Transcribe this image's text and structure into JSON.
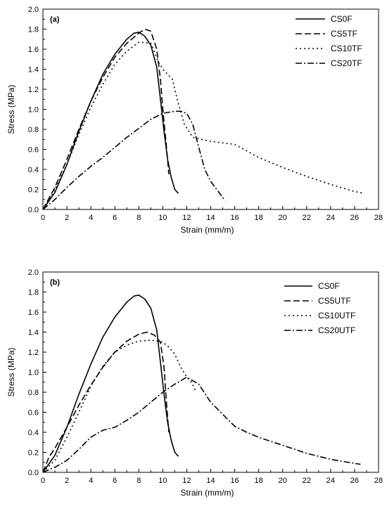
{
  "chart_data": [
    {
      "type": "line",
      "panel_label": "(a)",
      "xlabel": "Strain (mm/m)",
      "ylabel": "Stress (MPa)",
      "xlim": [
        0,
        28
      ],
      "ylim": [
        0,
        2.0
      ],
      "x_ticks": [
        "0",
        "2",
        "4",
        "6",
        "8",
        "10",
        "12",
        "14",
        "16",
        "18",
        "20",
        "22",
        "24",
        "26",
        "28"
      ],
      "y_ticks": [
        "0.0",
        "0.2",
        "0.4",
        "0.6",
        "0.8",
        "1.0",
        "1.2",
        "1.4",
        "1.6",
        "1.8",
        "2.0"
      ],
      "legend_position": "top-right",
      "grid": false,
      "series": [
        {
          "name": "CS0F",
          "dash": "solid",
          "points": [
            [
              0,
              0
            ],
            [
              1,
              0.17
            ],
            [
              2,
              0.45
            ],
            [
              3,
              0.78
            ],
            [
              4,
              1.08
            ],
            [
              5,
              1.35
            ],
            [
              6,
              1.55
            ],
            [
              7,
              1.7
            ],
            [
              7.6,
              1.76
            ],
            [
              8,
              1.77
            ],
            [
              8.5,
              1.73
            ],
            [
              9,
              1.64
            ],
            [
              9.5,
              1.42
            ],
            [
              9.8,
              1.1
            ],
            [
              10.1,
              0.78
            ],
            [
              10.4,
              0.5
            ],
            [
              10.7,
              0.32
            ],
            [
              11,
              0.2
            ],
            [
              11.3,
              0.16
            ]
          ]
        },
        {
          "name": "CS5TF",
          "dash": "dash",
          "points": [
            [
              0,
              0
            ],
            [
              1,
              0.22
            ],
            [
              2,
              0.5
            ],
            [
              3,
              0.8
            ],
            [
              4,
              1.08
            ],
            [
              5,
              1.32
            ],
            [
              6,
              1.52
            ],
            [
              7,
              1.66
            ],
            [
              8,
              1.76
            ],
            [
              8.5,
              1.8
            ],
            [
              9,
              1.78
            ],
            [
              9.5,
              1.6
            ],
            [
              9.8,
              1.3
            ],
            [
              10,
              1.0
            ],
            [
              10.2,
              0.75
            ],
            [
              10.4,
              0.5
            ],
            [
              10.5,
              0.35
            ]
          ]
        },
        {
          "name": "CS10TF",
          "dash": "dot",
          "points": [
            [
              0,
              0
            ],
            [
              1,
              0.2
            ],
            [
              2,
              0.45
            ],
            [
              3,
              0.75
            ],
            [
              4,
              1.02
            ],
            [
              5,
              1.25
            ],
            [
              6,
              1.45
            ],
            [
              7,
              1.58
            ],
            [
              8,
              1.67
            ],
            [
              9,
              1.66
            ],
            [
              9.6,
              1.48
            ],
            [
              10,
              1.4
            ],
            [
              10.8,
              1.3
            ],
            [
              11.2,
              1.1
            ],
            [
              11.8,
              0.85
            ],
            [
              12.5,
              0.72
            ],
            [
              14,
              0.68
            ],
            [
              16,
              0.65
            ],
            [
              18,
              0.52
            ],
            [
              20,
              0.42
            ],
            [
              22,
              0.33
            ],
            [
              24,
              0.25
            ],
            [
              26,
              0.18
            ],
            [
              26.8,
              0.16
            ]
          ]
        },
        {
          "name": "CS20TF",
          "dash": "dashdot",
          "points": [
            [
              0,
              0
            ],
            [
              1,
              0.1
            ],
            [
              2,
              0.22
            ],
            [
              3,
              0.33
            ],
            [
              4,
              0.43
            ],
            [
              5,
              0.52
            ],
            [
              6,
              0.62
            ],
            [
              7,
              0.72
            ],
            [
              8,
              0.81
            ],
            [
              9,
              0.9
            ],
            [
              10,
              0.96
            ],
            [
              11,
              0.98
            ],
            [
              11.5,
              0.98
            ],
            [
              12,
              0.96
            ],
            [
              12.5,
              0.85
            ],
            [
              13,
              0.62
            ],
            [
              13.5,
              0.4
            ],
            [
              14,
              0.28
            ],
            [
              14.5,
              0.2
            ],
            [
              15,
              0.12
            ],
            [
              15.2,
              0.09
            ]
          ]
        }
      ]
    },
    {
      "type": "line",
      "panel_label": "(b)",
      "xlabel": "Strain (mm/m)",
      "ylabel": "Stress (MPa)",
      "xlim": [
        0,
        28
      ],
      "ylim": [
        0,
        2.0
      ],
      "x_ticks": [
        "0",
        "2",
        "4",
        "6",
        "8",
        "10",
        "12",
        "14",
        "16",
        "18",
        "20",
        "22",
        "24",
        "26",
        "28"
      ],
      "y_ticks": [
        "0.0",
        "0.2",
        "0.4",
        "0.6",
        "0.8",
        "1.0",
        "1.2",
        "1.4",
        "1.6",
        "1.8",
        "2.0"
      ],
      "legend_position": "top-right",
      "grid": false,
      "series": [
        {
          "name": "CS0F",
          "dash": "solid",
          "points": [
            [
              0,
              0
            ],
            [
              1,
              0.17
            ],
            [
              2,
              0.45
            ],
            [
              3,
              0.78
            ],
            [
              4,
              1.08
            ],
            [
              5,
              1.35
            ],
            [
              6,
              1.55
            ],
            [
              7,
              1.7
            ],
            [
              7.6,
              1.76
            ],
            [
              8,
              1.77
            ],
            [
              8.5,
              1.73
            ],
            [
              9,
              1.64
            ],
            [
              9.5,
              1.42
            ],
            [
              9.8,
              1.1
            ],
            [
              10.1,
              0.78
            ],
            [
              10.4,
              0.5
            ],
            [
              10.7,
              0.32
            ],
            [
              11,
              0.2
            ],
            [
              11.3,
              0.16
            ]
          ]
        },
        {
          "name": "CS5UTF",
          "dash": "dash",
          "points": [
            [
              0,
              0
            ],
            [
              0.5,
              0.15
            ],
            [
              1,
              0.24
            ],
            [
              2,
              0.45
            ],
            [
              3,
              0.67
            ],
            [
              4,
              0.87
            ],
            [
              5,
              1.05
            ],
            [
              6,
              1.2
            ],
            [
              7,
              1.31
            ],
            [
              8,
              1.38
            ],
            [
              8.7,
              1.4
            ],
            [
              9.3,
              1.37
            ],
            [
              9.8,
              1.3
            ],
            [
              10.1,
              1.05
            ],
            [
              10.3,
              0.7
            ],
            [
              10.5,
              0.4
            ]
          ]
        },
        {
          "name": "CS10UTF",
          "dash": "dot",
          "points": [
            [
              0,
              0
            ],
            [
              1,
              0.12
            ],
            [
              2,
              0.35
            ],
            [
              3,
              0.6
            ],
            [
              4,
              0.86
            ],
            [
              5,
              1.06
            ],
            [
              6,
              1.2
            ],
            [
              7,
              1.27
            ],
            [
              8,
              1.31
            ],
            [
              9,
              1.32
            ],
            [
              10,
              1.3
            ],
            [
              10.5,
              1.25
            ],
            [
              11,
              1.18
            ],
            [
              11.5,
              1.05
            ],
            [
              12,
              0.95
            ],
            [
              12.4,
              0.9
            ],
            [
              12.7,
              0.82
            ]
          ]
        },
        {
          "name": "CS20UTF",
          "dash": "dashdot",
          "points": [
            [
              0,
              0
            ],
            [
              1,
              0.05
            ],
            [
              2,
              0.12
            ],
            [
              3,
              0.23
            ],
            [
              4,
              0.35
            ],
            [
              5,
              0.42
            ],
            [
              6,
              0.45
            ],
            [
              7,
              0.52
            ],
            [
              8,
              0.6
            ],
            [
              9,
              0.7
            ],
            [
              10,
              0.8
            ],
            [
              11,
              0.88
            ],
            [
              12,
              0.95
            ],
            [
              13,
              0.88
            ],
            [
              14,
              0.7
            ],
            [
              15,
              0.58
            ],
            [
              16,
              0.46
            ],
            [
              17,
              0.4
            ],
            [
              18,
              0.35
            ],
            [
              20,
              0.27
            ],
            [
              22,
              0.19
            ],
            [
              24,
              0.13
            ],
            [
              26,
              0.09
            ],
            [
              26.5,
              0.08
            ]
          ]
        }
      ]
    }
  ]
}
